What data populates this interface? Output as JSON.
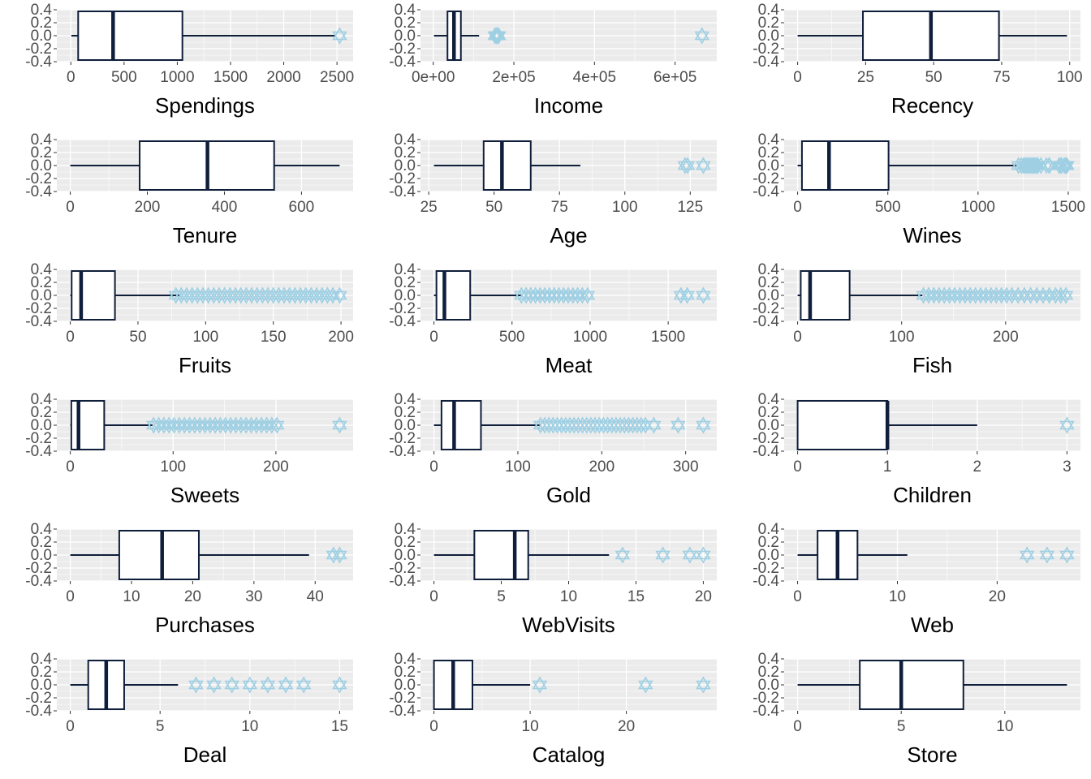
{
  "colors": {
    "panel_bg": "#EBEBEB",
    "grid": "#FFFFFF",
    "box_line": "#0F1E3A",
    "box_fill": "#FFFFFF",
    "outlier": "#9ECFE3",
    "tick_text": "#4D4D4D",
    "label_text": "#000000"
  },
  "outlier_icon": "hexagram-star-icon",
  "y_axis": {
    "ticks": [
      0.4,
      0.2,
      0.0,
      -0.2,
      -0.4
    ],
    "tick_labels": [
      "0.4",
      "0.2",
      "0.0",
      "-0.2",
      "-0.4"
    ],
    "range": [
      -0.4,
      0.4
    ]
  },
  "chart_data": [
    {
      "type": "boxplot",
      "xlabel": "Spendings",
      "xlim": [
        -5,
        2525
      ],
      "xticks": [
        0,
        500,
        1000,
        1500,
        2000,
        2500
      ],
      "xtick_labels": [
        "0",
        "500",
        "1000",
        "1500",
        "2000",
        "2500"
      ],
      "whisker_low": 5,
      "q1": 69,
      "median": 397,
      "q3": 1048,
      "whisker_high": 2491,
      "outliers": [
        2525
      ]
    },
    {
      "type": "boxplot",
      "xlabel": "Income",
      "xlim": [
        1730,
        670000
      ],
      "xticks": [
        0,
        200000,
        400000,
        600000
      ],
      "xtick_labels": [
        "0e+00",
        "2e+05",
        "4e+05",
        "6e+05"
      ],
      "whisker_low": 1730,
      "q1": 35300,
      "median": 51400,
      "q3": 68500,
      "whisker_high": 113700,
      "outliers": [
        153000,
        156000,
        157000,
        157200,
        160800,
        162400,
        666666
      ]
    },
    {
      "type": "boxplot",
      "xlabel": "Recency",
      "xlim": [
        0,
        99
      ],
      "xticks": [
        0,
        25,
        50,
        75,
        100
      ],
      "xtick_labels": [
        "0",
        "25",
        "50",
        "75",
        "100"
      ],
      "whisker_low": 0,
      "q1": 24,
      "median": 49,
      "q3": 74,
      "whisker_high": 99,
      "outliers": []
    },
    {
      "type": "boxplot",
      "xlabel": "Tenure",
      "xlim": [
        0,
        699
      ],
      "xticks": [
        0,
        200,
        400,
        600
      ],
      "xtick_labels": [
        "0",
        "200",
        "400",
        "600"
      ],
      "whisker_low": 0,
      "q1": 180,
      "median": 356,
      "q3": 529,
      "whisker_high": 699,
      "outliers": []
    },
    {
      "type": "boxplot",
      "xlabel": "Age",
      "xlim": [
        27,
        130
      ],
      "xticks": [
        25,
        50,
        75,
        100,
        125
      ],
      "xtick_labels": [
        "25",
        "50",
        "75",
        "100",
        "125"
      ],
      "whisker_low": 27,
      "q1": 46,
      "median": 53,
      "q3": 64,
      "whisker_high": 83,
      "outliers": [
        123,
        124,
        130
      ]
    },
    {
      "type": "boxplot",
      "xlabel": "Wines",
      "xlim": [
        0,
        1493
      ],
      "xticks": [
        0,
        500,
        1000,
        1500
      ],
      "xtick_labels": [
        "0",
        "500",
        "1000",
        "1500"
      ],
      "whisker_low": 0,
      "q1": 24,
      "median": 174,
      "q3": 504,
      "whisker_high": 1215,
      "outliers": [
        1224,
        1240,
        1253,
        1260,
        1270,
        1276,
        1285,
        1290,
        1298,
        1302,
        1311,
        1315,
        1324,
        1332,
        1349,
        1379,
        1394,
        1396,
        1449,
        1459,
        1462,
        1478,
        1486,
        1492,
        1493
      ]
    },
    {
      "type": "boxplot",
      "xlabel": "Fruits",
      "xlim": [
        0,
        199
      ],
      "xticks": [
        0,
        50,
        100,
        150,
        200
      ],
      "xtick_labels": [
        "0",
        "50",
        "100",
        "150",
        "200"
      ],
      "whisker_low": 0,
      "q1": 1,
      "median": 8,
      "q3": 33,
      "whisker_high": 81,
      "outliers": [
        78,
        82,
        86,
        90,
        94,
        98,
        102,
        106,
        110,
        114,
        118,
        122,
        126,
        130,
        134,
        138,
        142,
        146,
        150,
        154,
        158,
        162,
        166,
        170,
        174,
        178,
        182,
        186,
        190,
        194,
        199
      ]
    },
    {
      "type": "boxplot",
      "xlabel": "Meat",
      "xlim": [
        0,
        1725
      ],
      "xticks": [
        0,
        500,
        1000,
        1500
      ],
      "xtick_labels": [
        "0",
        "500",
        "1000",
        "1500"
      ],
      "whisker_low": 0,
      "q1": 16,
      "median": 67,
      "q3": 232,
      "whisker_high": 556,
      "outliers": [
        560,
        590,
        620,
        650,
        680,
        710,
        740,
        770,
        800,
        830,
        860,
        890,
        920,
        950,
        984,
        1582,
        1622,
        1725
      ]
    },
    {
      "type": "boxplot",
      "xlabel": "Fish",
      "xlim": [
        0,
        259
      ],
      "xticks": [
        0,
        100,
        200
      ],
      "xtick_labels": [
        "0",
        "100",
        "200"
      ],
      "whisker_low": 0,
      "q1": 3,
      "median": 12,
      "q3": 50,
      "whisker_high": 120,
      "outliers": [
        121,
        126,
        131,
        136,
        141,
        146,
        151,
        156,
        161,
        166,
        171,
        176,
        181,
        186,
        191,
        196,
        201,
        206,
        212,
        218,
        224,
        230,
        236,
        242,
        248,
        253,
        258
      ]
    },
    {
      "type": "boxplot",
      "xlabel": "Sweets",
      "xlim": [
        0,
        262
      ],
      "xticks": [
        0,
        100,
        200
      ],
      "xtick_labels": [
        "0",
        "100",
        "200"
      ],
      "whisker_low": 0,
      "q1": 1,
      "median": 8,
      "q3": 33,
      "whisker_high": 80,
      "outliers": [
        81,
        86,
        91,
        96,
        101,
        106,
        111,
        116,
        121,
        126,
        131,
        136,
        141,
        146,
        151,
        156,
        161,
        166,
        171,
        176,
        181,
        186,
        191,
        196,
        201,
        262
      ]
    },
    {
      "type": "boxplot",
      "xlabel": "Gold",
      "xlim": [
        0,
        321
      ],
      "xticks": [
        0,
        100,
        200,
        300
      ],
      "xtick_labels": [
        "0",
        "100",
        "200",
        "300"
      ],
      "whisker_low": 0,
      "q1": 9,
      "median": 24,
      "q3": 56,
      "whisker_high": 126,
      "outliers": [
        127,
        132,
        137,
        142,
        147,
        152,
        157,
        162,
        167,
        172,
        177,
        182,
        187,
        192,
        197,
        202,
        207,
        212,
        217,
        222,
        227,
        232,
        237,
        242,
        247,
        252,
        262,
        291,
        321
      ]
    },
    {
      "type": "boxplot",
      "xlabel": "Children",
      "xlim": [
        0,
        3
      ],
      "xticks": [
        0,
        1,
        2,
        3
      ],
      "xtick_labels": [
        "0",
        "1",
        "2",
        "3"
      ],
      "whisker_low": 0,
      "q1": 0,
      "median": 1,
      "q3": 1,
      "whisker_high": 2,
      "outliers": [
        3
      ]
    },
    {
      "type": "boxplot",
      "xlabel": "Purchases",
      "xlim": [
        0,
        44
      ],
      "xticks": [
        0,
        10,
        20,
        30,
        40
      ],
      "xtick_labels": [
        "0",
        "10",
        "20",
        "30",
        "40"
      ],
      "whisker_low": 0,
      "q1": 8,
      "median": 15,
      "q3": 21,
      "whisker_high": 39,
      "outliers": [
        43,
        44
      ]
    },
    {
      "type": "boxplot",
      "xlabel": "WebVisits",
      "xlim": [
        0,
        20
      ],
      "xticks": [
        0,
        5,
        10,
        15,
        20
      ],
      "xtick_labels": [
        "0",
        "5",
        "10",
        "15",
        "20"
      ],
      "whisker_low": 0,
      "q1": 3,
      "median": 6,
      "q3": 7,
      "whisker_high": 13,
      "outliers": [
        14,
        17,
        19,
        20
      ]
    },
    {
      "type": "boxplot",
      "xlabel": "Web",
      "xlim": [
        0,
        27
      ],
      "xticks": [
        0,
        10,
        20
      ],
      "xtick_labels": [
        "0",
        "10",
        "20"
      ],
      "whisker_low": 0,
      "q1": 2,
      "median": 4,
      "q3": 6,
      "whisker_high": 11,
      "outliers": [
        23,
        25,
        27
      ]
    },
    {
      "type": "boxplot",
      "xlabel": "Deal",
      "xlim": [
        0,
        15
      ],
      "xticks": [
        0,
        5,
        10,
        15
      ],
      "xtick_labels": [
        "0",
        "5",
        "10",
        "15"
      ],
      "whisker_low": 0,
      "q1": 1,
      "median": 2,
      "q3": 3,
      "whisker_high": 6,
      "outliers": [
        7,
        8,
        9,
        10,
        11,
        12,
        13,
        15
      ]
    },
    {
      "type": "boxplot",
      "xlabel": "Catalog",
      "xlim": [
        0,
        28
      ],
      "xticks": [
        0,
        10,
        20
      ],
      "xtick_labels": [
        "0",
        "10",
        "20"
      ],
      "whisker_low": 0,
      "q1": 0,
      "median": 2,
      "q3": 4,
      "whisker_high": 10,
      "outliers": [
        11,
        22,
        28
      ]
    },
    {
      "type": "boxplot",
      "xlabel": "Store",
      "xlim": [
        0,
        13
      ],
      "xticks": [
        0,
        5,
        10
      ],
      "xtick_labels": [
        "0",
        "5",
        "10"
      ],
      "whisker_low": 0,
      "q1": 3,
      "median": 5,
      "q3": 8,
      "whisker_high": 13,
      "outliers": []
    }
  ]
}
